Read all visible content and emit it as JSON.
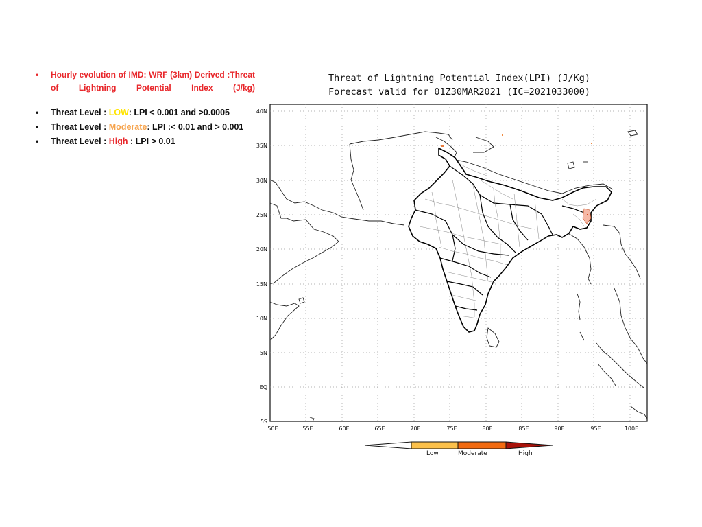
{
  "info": {
    "headline": "Hourly evolution of IMD: WRF (3km) Derived :Threat of Lightning Potential Index (J/kg)",
    "levels": [
      {
        "prefix": "Threat Level :",
        "name": "LOW",
        "rule": ": LPI < 0.001 and >0.0005"
      },
      {
        "prefix": "Threat Level :",
        "name": "Moderate",
        "rule": ": LPI :< 0.01 and > 0.001"
      },
      {
        "prefix": "Threat Level :",
        "name": "High",
        "rule": " : LPI > 0.01"
      }
    ]
  },
  "map": {
    "title_line1": "Threat of Lightning Potential Index(LPI) (J/Kg)",
    "title_line2": "Forecast valid for 01Z30MAR2021 (IC=2021033000)",
    "lon_ticks": [
      "50E",
      "55E",
      "60E",
      "65E",
      "70E",
      "75E",
      "80E",
      "85E",
      "90E",
      "95E",
      "100E"
    ],
    "lat_ticks": [
      "40N",
      "35N",
      "30N",
      "25N",
      "20N",
      "15N",
      "10N",
      "5N",
      "EQ",
      "5S"
    ],
    "legend": {
      "labels": [
        "Low",
        "Moderate",
        "High"
      ],
      "colors": [
        "#ffffff",
        "#fbc04a",
        "#f26a10",
        "#a8120a"
      ]
    }
  }
}
